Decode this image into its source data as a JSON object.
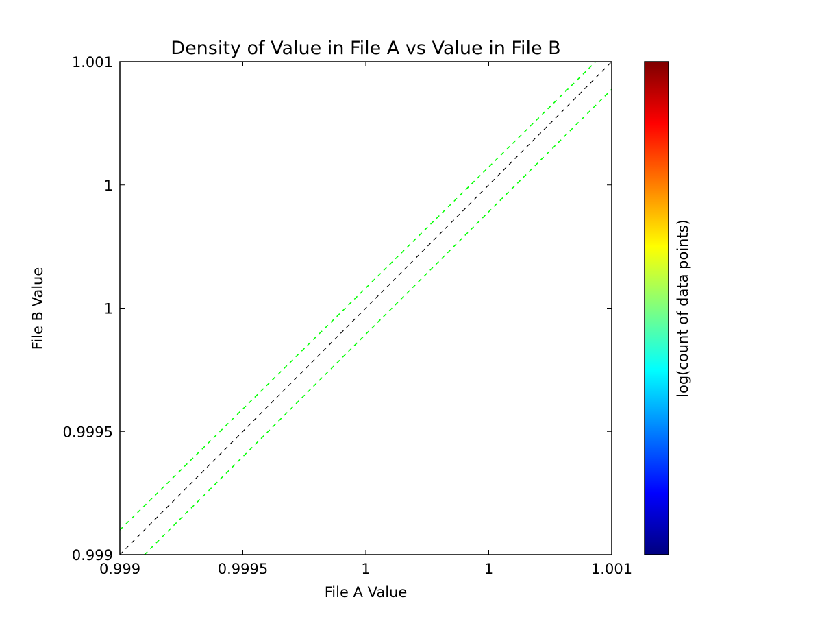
{
  "chart_data": {
    "type": "scatter",
    "title": "Density of Value in File A vs Value in File B",
    "xlabel": "File A Value",
    "ylabel": "File B Value",
    "xlim": [
      0.999,
      1.001
    ],
    "ylim": [
      0.999,
      1.001
    ],
    "x_ticks": [
      {
        "value": 0.999,
        "label": "0.999"
      },
      {
        "value": 0.9995,
        "label": "0.9995"
      },
      {
        "value": 1.0,
        "label": "1"
      },
      {
        "value": 1.0005,
        "label": "1"
      },
      {
        "value": 1.001,
        "label": "1.001"
      }
    ],
    "y_ticks": [
      {
        "value": 0.999,
        "label": "0.999"
      },
      {
        "value": 0.9995,
        "label": "0.9995"
      },
      {
        "value": 1.0,
        "label": "1"
      },
      {
        "value": 1.0005,
        "label": "1"
      },
      {
        "value": 1.001,
        "label": "1.001"
      }
    ],
    "points": [],
    "reference_lines": [
      {
        "style": "dashed",
        "color": "#000000",
        "x": [
          0.999,
          1.001
        ],
        "y": [
          0.999,
          1.001
        ]
      },
      {
        "style": "dashed",
        "color": "#00ff00",
        "x": [
          0.999,
          1.000935
        ],
        "y": [
          0.9991,
          1.001
        ]
      },
      {
        "style": "dashed",
        "color": "#00ff00",
        "x": [
          0.9991,
          1.001
        ],
        "y": [
          0.999,
          1.000888
        ]
      }
    ],
    "grid": false,
    "colorbar": {
      "label": "log(count of data points)",
      "colormap": "jet",
      "colors": [
        "#00007f",
        "#0000ff",
        "#007fff",
        "#00ffff",
        "#7fff7f",
        "#ffff00",
        "#ff7f00",
        "#ff0000",
        "#7f0000"
      ]
    }
  }
}
